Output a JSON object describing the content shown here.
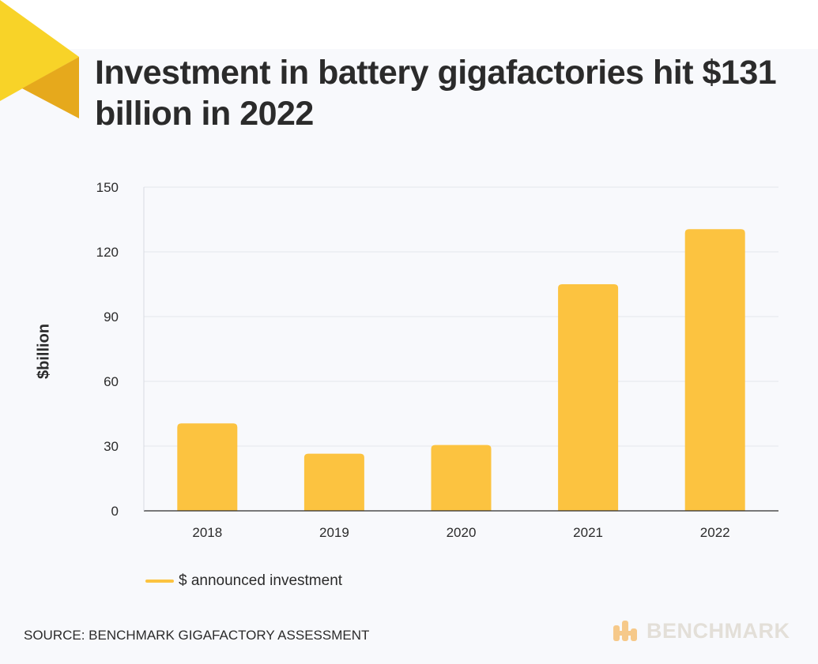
{
  "title": "Investment in battery gigafactories hit $131 billion in 2022",
  "legend": {
    "label": "$ announced investment"
  },
  "source": "SOURCE: BENCHMARK GIGAFACTORY ASSESSMENT",
  "brand": {
    "name": "BENCHMARK"
  },
  "colors": {
    "bar": "#fcc340",
    "grid": "#e3e6ec",
    "axis": "#2b2b2b",
    "corner_light": "#f8d328",
    "corner_dark": "#e6a91c",
    "brand_mark": "#f6c98a"
  },
  "chart_data": {
    "type": "bar",
    "categories": [
      "2018",
      "2019",
      "2020",
      "2021",
      "2022"
    ],
    "series": [
      {
        "name": "$ announced investment",
        "values": [
          40.5,
          26.5,
          30.5,
          105,
          130.5
        ]
      }
    ],
    "ylabel": "$billion",
    "ylim": [
      0,
      150
    ],
    "yticks": [
      0,
      30,
      60,
      90,
      120,
      150
    ],
    "grid": true,
    "legend_position": "bottom-left"
  }
}
